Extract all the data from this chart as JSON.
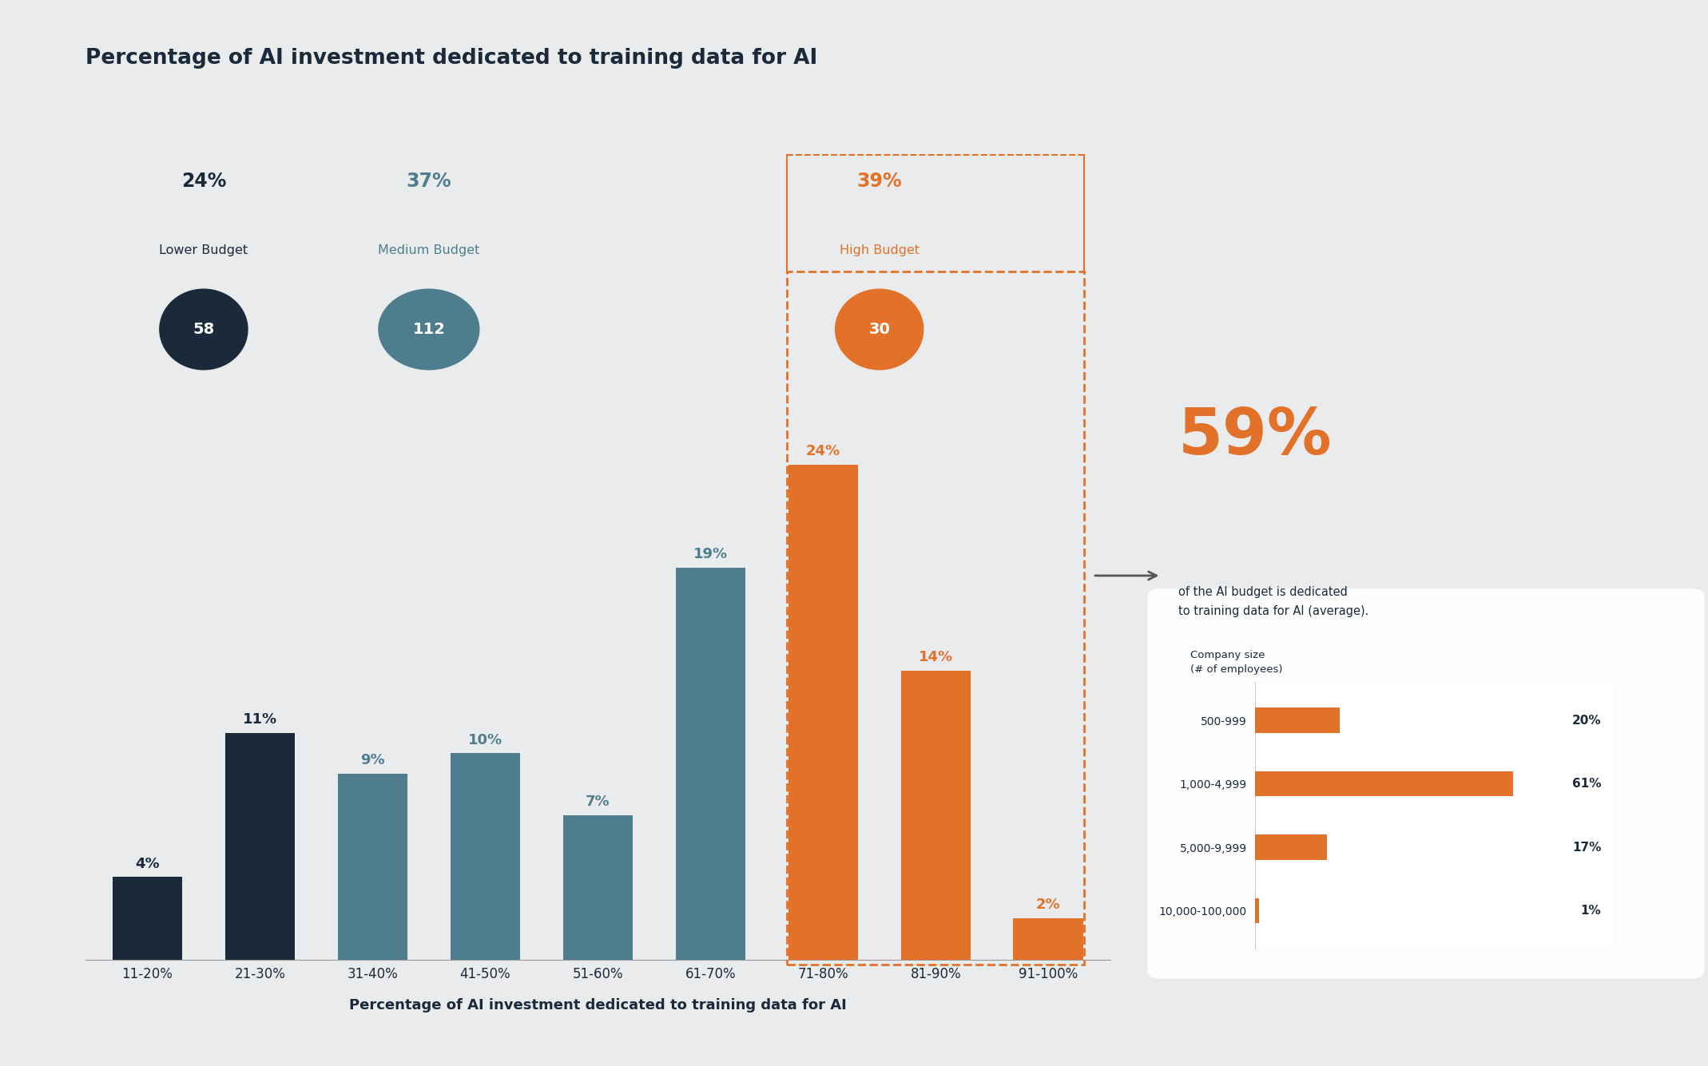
{
  "title": "Percentage of AI investment dedicated to training data for AI",
  "xlabel": "Percentage of AI investment dedicated to training data for AI",
  "bg_color": "#eaebed",
  "bar_categories": [
    "11-20%",
    "21-30%",
    "31-40%",
    "41-50%",
    "51-60%",
    "61-70%",
    "71-80%",
    "81-90%",
    "91-100%"
  ],
  "bar_values": [
    4,
    11,
    9,
    10,
    7,
    19,
    24,
    14,
    2
  ],
  "bar_colors": [
    "#1b2a3b",
    "#1b2a3b",
    "#4e7e8e",
    "#4e7e8e",
    "#4e7e8e",
    "#4e7e8e",
    "#e2712a",
    "#e2712a",
    "#e2712a"
  ],
  "annotation_59_sub": "of the AI budget is dedicated\nto training data for AI (average).",
  "dashed_box_color": "#e2712a",
  "company_sizes": [
    "500-999",
    "1,000-4,999",
    "5,000-9,999",
    "10,000-100,000"
  ],
  "company_values": [
    20,
    61,
    17,
    1
  ],
  "company_color": "#e2712a",
  "title_color": "#1b2a3b",
  "tick_color": "#1b2a3b",
  "label_colors": [
    "#1b2a3b",
    "#1b2a3b",
    "#4e7e8e",
    "#4e7e8e",
    "#4e7e8e",
    "#4e7e8e",
    "#e2712a",
    "#e2712a",
    "#e2712a"
  ],
  "lb_pct": "24%",
  "lb_label": "Lower Budget",
  "lb_num": "58",
  "lb_color": "#1b2a3b",
  "mb_pct": "37%",
  "mb_label": "Medium Budget",
  "mb_num": "112",
  "mb_color": "#4e7e8e",
  "hb_pct": "39%",
  "hb_label": "High Budget",
  "hb_num": "30",
  "hb_color": "#e2712a"
}
